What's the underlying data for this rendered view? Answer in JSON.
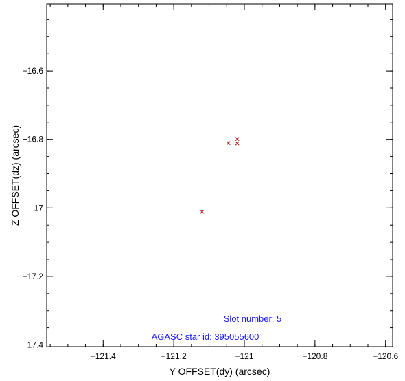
{
  "chart_data": {
    "type": "scatter",
    "title": "",
    "xlabel": "Y OFFSET(dy) (arcsec)",
    "ylabel": "Z OFFSET(dz) (arcsec)",
    "xlim": [
      -121.56,
      -120.58
    ],
    "ylim": [
      -17.405,
      -16.405
    ],
    "xticks": [
      {
        "value": -121.4,
        "label": "−121.4"
      },
      {
        "value": -121.2,
        "label": "−121.2"
      },
      {
        "value": -121.0,
        "label": "−121"
      },
      {
        "value": -120.8,
        "label": "−120.8"
      },
      {
        "value": -120.6,
        "label": "−120.6"
      }
    ],
    "yticks": [
      {
        "value": -16.6,
        "label": "−16.6"
      },
      {
        "value": -16.8,
        "label": "−16.8"
      },
      {
        "value": -17.0,
        "label": "−17"
      },
      {
        "value": -17.2,
        "label": "−17.2"
      },
      {
        "value": -17.4,
        "label": "−17.4"
      }
    ],
    "minor_step_x": 0.05,
    "minor_step_y": 0.05,
    "grid": false,
    "marker": "x",
    "marker_color": "#b22222",
    "points": [
      {
        "x": -121.045,
        "y": -16.811
      },
      {
        "x": -121.02,
        "y": -16.799
      },
      {
        "x": -121.02,
        "y": -16.812
      },
      {
        "x": -121.12,
        "y": -17.011
      }
    ],
    "annotations": [
      {
        "text": "Slot number: 5",
        "color": "#1a1aff"
      },
      {
        "text": "AGASC star id: 395055600",
        "color": "#1a1aff"
      }
    ]
  }
}
